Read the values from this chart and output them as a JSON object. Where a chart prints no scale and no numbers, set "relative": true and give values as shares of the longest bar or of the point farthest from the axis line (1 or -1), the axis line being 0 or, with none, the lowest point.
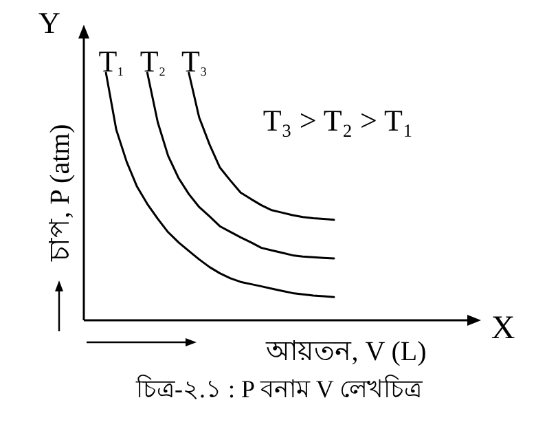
{
  "chart_data": {
    "type": "line",
    "relative": true,
    "categories": [
      null,
      null,
      null,
      null,
      null,
      null,
      null,
      null,
      null,
      null,
      null,
      null,
      null,
      null,
      null,
      null,
      null,
      null,
      null,
      null,
      null,
      null,
      null
    ],
    "ylabel": "চাপ, P (atm)",
    "xlabel": "আয়তন, V (L)",
    "legend": "top left",
    "marker": "none",
    "line_style": "solid",
    "series": [
      {
        "name": "T₁",
        "color": "#000000",
        "values": [
          1,
          0.77,
          0.64,
          0.54,
          0.47,
          0.41,
          0.356,
          0.315,
          0.28,
          0.246,
          0.215,
          0.19,
          0.17,
          0.155,
          0.146,
          0.137,
          0.128,
          0.119,
          0.11,
          0.105,
          0.1,
          0.097,
          0.094
        ]
      },
      {
        "name": "T₂",
        "color": "#000000",
        "values": [
          null,
          null,
          null,
          null,
          1,
          0.8,
          0.665,
          0.575,
          0.51,
          0.458,
          0.42,
          0.38,
          0.357,
          0.335,
          0.315,
          0.293,
          0.283,
          0.273,
          0.263,
          0.258,
          0.255,
          0.252,
          0.25
        ]
      },
      {
        "name": "T₃",
        "color": "#000000",
        "values": [
          null,
          null,
          null,
          null,
          null,
          null,
          null,
          null,
          1,
          0.82,
          0.71,
          0.617,
          0.565,
          0.516,
          0.49,
          0.465,
          0.445,
          0.435,
          0.425,
          0.417,
          0.413,
          0.41,
          0.406
        ]
      }
    ],
    "annotations": [
      "T₃ > T₂ > T₁",
      "Y",
      "X",
      "চিত্র-২.১ : P বনাম V লেখচিত্র"
    ]
  }
}
